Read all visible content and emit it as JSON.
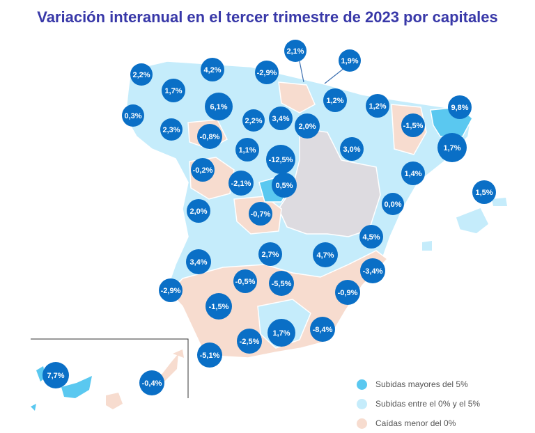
{
  "title": "Variación interanual en el tercer trimestre de 2023 por capitales",
  "colors": {
    "high": "#5ac8f0",
    "mid": "#c5ecfb",
    "low": "#f7dccf",
    "none": "#dddbe0",
    "bubble": "#0a6fc6"
  },
  "legend": [
    {
      "label": "Subidas mayores del 5%",
      "color": "#5ac8f0"
    },
    {
      "label": "Subidas entre el 0% y el 5%",
      "color": "#c5ecfb"
    },
    {
      "label": "Caídas menor del 0%",
      "color": "#f7dccf"
    }
  ],
  "values": [
    "2,2%",
    "4,2%",
    "-2,9%",
    "2,1%",
    "1,9%",
    "1,7%",
    "0,3%",
    "6,1%",
    "1,2%",
    "1,2%",
    "9,8%",
    "2,2%",
    "3,4%",
    "2,0%",
    "-1,5%",
    "2,3%",
    "-0,8%",
    "1,1%",
    "3,0%",
    "1,7%",
    "-12,5%",
    "-0,2%",
    "-2,1%",
    "0,5%",
    "1,4%",
    "1,5%",
    "0,0%",
    "2,0%",
    "-0,7%",
    "4,5%",
    "2,7%",
    "4,7%",
    "3,4%",
    "-3,4%",
    "-2,9%",
    "-0,5%",
    "-5,5%",
    "-0,9%",
    "-1,5%",
    "1,7%",
    "-8,4%",
    "-2,5%",
    "-5,1%",
    "7,7%",
    "-0,4%"
  ]
}
